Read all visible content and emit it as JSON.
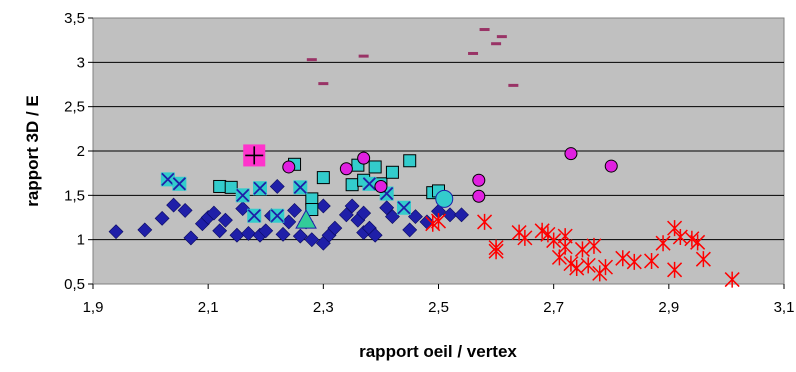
{
  "chart_data": {
    "type": "scatter",
    "title": "",
    "xlabel": "rapport oeil / vertex",
    "ylabel": "rapport 3D / E",
    "xlim": [
      1.9,
      3.1
    ],
    "ylim": [
      0.5,
      3.5
    ],
    "x_ticks": [
      "1,9",
      "2,1",
      "2,3",
      "2,5",
      "2,7",
      "2,9",
      "3,1"
    ],
    "y_ticks": [
      "0,5",
      "1",
      "1,5",
      "2",
      "2,5",
      "3",
      "3,5"
    ],
    "grid": "horizontal",
    "legend": "none",
    "plot_background": "#c0c0c0",
    "series": [
      {
        "marker": "diamond",
        "color": "#1f1fa8",
        "points": [
          [
            1.94,
            1.09
          ],
          [
            1.99,
            1.11
          ],
          [
            2.02,
            1.24
          ],
          [
            2.04,
            1.39
          ],
          [
            2.06,
            1.33
          ],
          [
            2.07,
            1.02
          ],
          [
            2.09,
            1.18
          ],
          [
            2.1,
            1.25
          ],
          [
            2.11,
            1.3
          ],
          [
            2.12,
            1.1
          ],
          [
            2.13,
            1.22
          ],
          [
            2.15,
            1.05
          ],
          [
            2.16,
            1.35
          ],
          [
            2.17,
            1.07
          ],
          [
            2.19,
            1.05
          ],
          [
            2.2,
            1.1
          ],
          [
            2.21,
            1.27
          ],
          [
            2.22,
            1.6
          ],
          [
            2.23,
            1.06
          ],
          [
            2.24,
            1.2
          ],
          [
            2.25,
            1.33
          ],
          [
            2.26,
            1.04
          ],
          [
            2.27,
            1.2
          ],
          [
            2.28,
            1.0
          ],
          [
            2.3,
            0.96
          ],
          [
            2.31,
            1.05
          ],
          [
            2.32,
            1.13
          ],
          [
            2.34,
            1.28
          ],
          [
            2.35,
            1.38
          ],
          [
            2.36,
            1.22
          ],
          [
            2.37,
            1.08
          ],
          [
            2.38,
            1.13
          ],
          [
            2.39,
            1.05
          ],
          [
            2.41,
            1.36
          ],
          [
            2.42,
            1.26
          ],
          [
            2.45,
            1.11
          ],
          [
            2.46,
            1.26
          ],
          [
            2.48,
            1.2
          ],
          [
            2.5,
            1.32
          ],
          [
            2.52,
            1.28
          ],
          [
            2.54,
            1.28
          ],
          [
            2.3,
            1.38
          ],
          [
            2.37,
            1.3
          ]
        ]
      },
      {
        "marker": "square",
        "color": "#33cccc",
        "points": [
          [
            2.12,
            1.6
          ],
          [
            2.14,
            1.59
          ],
          [
            2.25,
            1.85
          ],
          [
            2.28,
            1.46
          ],
          [
            2.3,
            1.7
          ],
          [
            2.35,
            1.62
          ],
          [
            2.37,
            1.67
          ],
          [
            2.39,
            1.82
          ],
          [
            2.4,
            1.63
          ],
          [
            2.42,
            1.76
          ],
          [
            2.45,
            1.89
          ],
          [
            2.49,
            1.53
          ],
          [
            2.5,
            1.55
          ],
          [
            2.28,
            1.34
          ],
          [
            2.36,
            1.84
          ]
        ]
      },
      {
        "marker": "x-square",
        "color": "#33cccc",
        "points": [
          [
            2.03,
            1.68
          ],
          [
            2.05,
            1.63
          ],
          [
            2.16,
            1.5
          ],
          [
            2.18,
            1.27
          ],
          [
            2.19,
            1.58
          ],
          [
            2.22,
            1.27
          ],
          [
            2.26,
            1.59
          ],
          [
            2.38,
            1.63
          ],
          [
            2.41,
            1.52
          ],
          [
            2.44,
            1.36
          ]
        ]
      },
      {
        "marker": "circle",
        "color": "#e020e0",
        "points": [
          [
            2.24,
            1.82
          ],
          [
            2.34,
            1.8
          ],
          [
            2.37,
            1.92
          ],
          [
            2.4,
            1.6
          ],
          [
            2.57,
            1.67
          ],
          [
            2.57,
            1.49
          ],
          [
            2.73,
            1.97
          ],
          [
            2.8,
            1.83
          ]
        ]
      },
      {
        "marker": "dash",
        "color": "#993366",
        "points": [
          [
            2.28,
            3.03
          ],
          [
            2.3,
            2.76
          ],
          [
            2.37,
            3.07
          ],
          [
            2.56,
            3.1
          ],
          [
            2.58,
            3.37
          ],
          [
            2.6,
            3.21
          ],
          [
            2.61,
            3.29
          ],
          [
            2.63,
            2.74
          ]
        ]
      },
      {
        "marker": "star",
        "color": "#ff0000",
        "points": [
          [
            2.49,
            1.18
          ],
          [
            2.5,
            1.21
          ],
          [
            2.58,
            1.2
          ],
          [
            2.6,
            0.87
          ],
          [
            2.6,
            0.91
          ],
          [
            2.64,
            1.08
          ],
          [
            2.65,
            1.02
          ],
          [
            2.68,
            1.1
          ],
          [
            2.69,
            1.06
          ],
          [
            2.7,
            0.99
          ],
          [
            2.71,
            0.8
          ],
          [
            2.72,
            0.92
          ],
          [
            2.72,
            1.04
          ],
          [
            2.73,
            0.73
          ],
          [
            2.74,
            0.68
          ],
          [
            2.75,
            0.89
          ],
          [
            2.76,
            0.71
          ],
          [
            2.77,
            0.93
          ],
          [
            2.78,
            0.62
          ],
          [
            2.79,
            0.69
          ],
          [
            2.82,
            0.79
          ],
          [
            2.84,
            0.75
          ],
          [
            2.87,
            0.76
          ],
          [
            2.89,
            0.96
          ],
          [
            2.91,
            0.66
          ],
          [
            2.91,
            1.13
          ],
          [
            2.92,
            1.03
          ],
          [
            2.94,
            1.01
          ],
          [
            2.95,
            0.97
          ],
          [
            2.96,
            0.78
          ],
          [
            3.01,
            0.55
          ]
        ]
      },
      {
        "marker": "triangle",
        "color": "#33cc99",
        "points": [
          [
            2.27,
            1.22
          ]
        ]
      },
      {
        "marker": "big-circle",
        "color": "#33cccc",
        "points": [
          [
            2.51,
            1.46
          ]
        ]
      },
      {
        "marker": "plus-square",
        "color": "#ff33cc",
        "points": [
          [
            2.18,
            1.95
          ]
        ]
      }
    ]
  }
}
